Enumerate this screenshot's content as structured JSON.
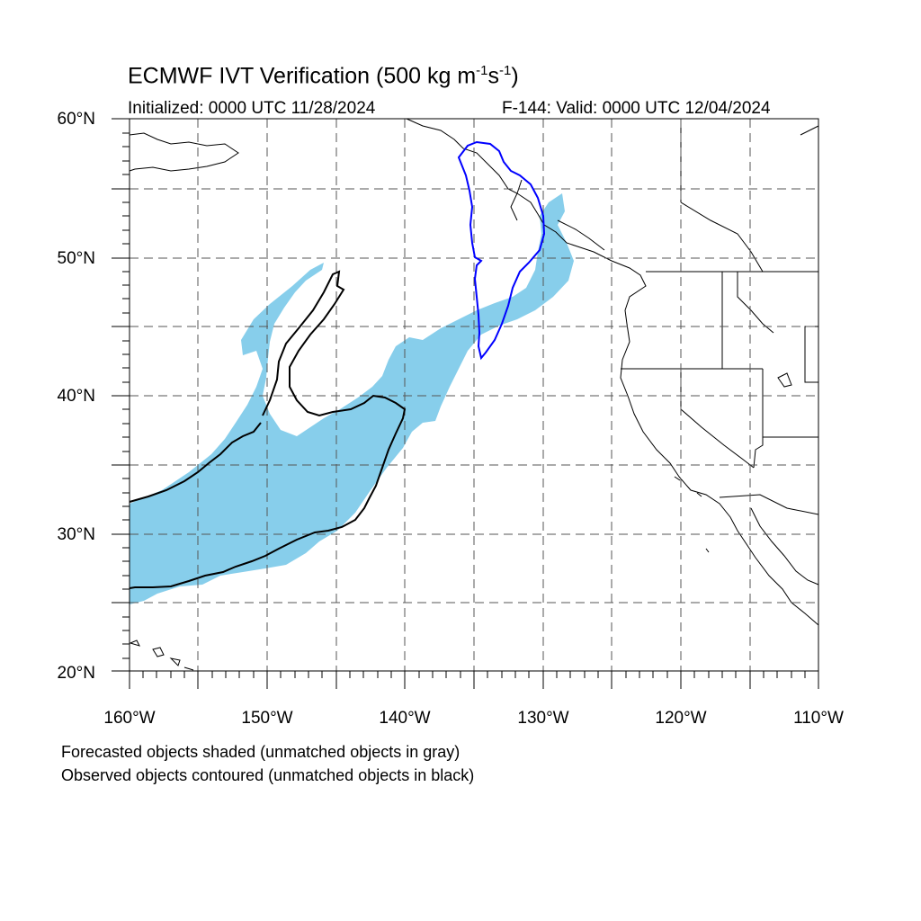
{
  "title": {
    "prefix": "ECMWF IVT Verification (500 kg m",
    "exp1": "-1",
    "mid": "s",
    "exp2": "-1",
    "suffix": ")"
  },
  "initialized": "Initialized: 0000 UTC 11/28/2024",
  "valid": "F-144: Valid: 0000 UTC 12/04/2024",
  "lat_labels": [
    "60°N",
    "50°N",
    "40°N",
    "30°N",
    "20°N"
  ],
  "lon_labels": [
    "160°W",
    "150°W",
    "140°W",
    "130°W",
    "120°W",
    "110°W"
  ],
  "footnote": {
    "line1": "Forecasted objects shaded (unmatched objects in gray)",
    "line2": "Observed objects contoured (unmatched objects in black)"
  },
  "colors": {
    "forecast_fill": "#87ceeb",
    "matched_observed": "#0000ff",
    "unmatched_observed": "#000000"
  }
}
